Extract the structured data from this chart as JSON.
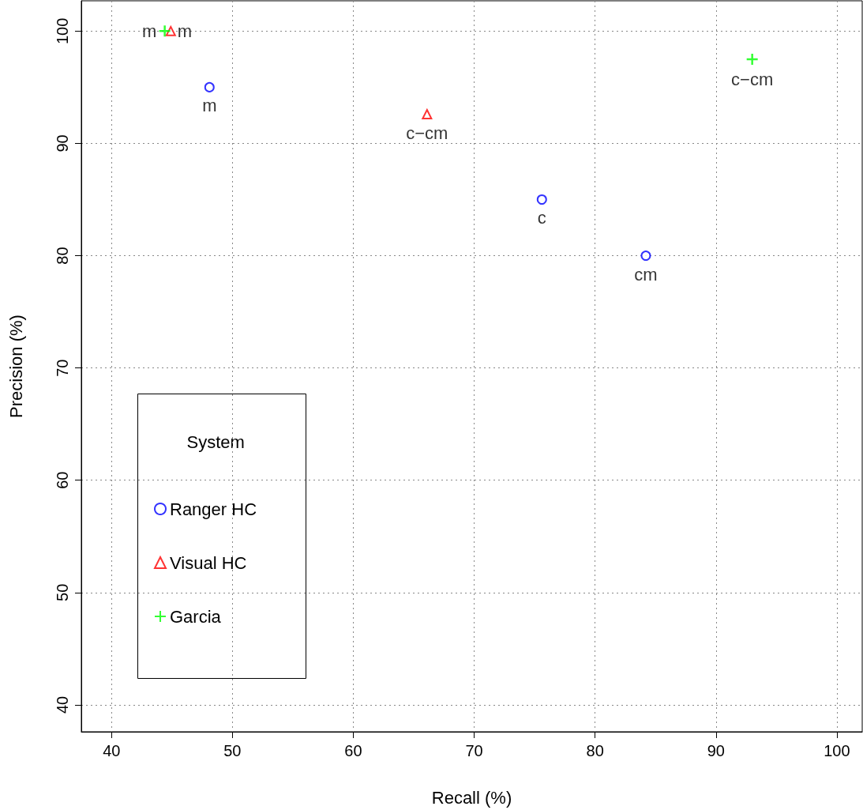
{
  "chart_data": {
    "type": "scatter",
    "xlabel": "Recall (%)",
    "ylabel": "Precision (%)",
    "legend_title": "System",
    "legend": "bottom left",
    "grid": true,
    "xlim": [
      37.5,
      102.1
    ],
    "xticks": [
      40,
      50,
      60,
      70,
      80,
      90,
      100
    ],
    "ylim": [
      37.6,
      102.7
    ],
    "yticks": [
      40,
      50,
      60,
      70,
      80,
      90,
      100
    ],
    "series": [
      {
        "name": "Ranger HC",
        "color": "#0000ff",
        "marker": "circle",
        "x": [
          48.1,
          75.6,
          84.2
        ],
        "values": [
          95,
          85,
          80
        ],
        "value_labels": [
          "m",
          "c",
          "cm"
        ]
      },
      {
        "name": "Visual HC",
        "color": "#ff0000",
        "marker": "triangle",
        "x": [
          44.9,
          66.1
        ],
        "values": [
          100,
          92.6
        ],
        "value_labels": [
          "m",
          "c−cm"
        ]
      },
      {
        "name": "Garcia",
        "color": "#00ff00",
        "marker": "cross",
        "x": [
          44.4,
          93
        ],
        "values": [
          100,
          97.5
        ],
        "value_labels": [
          "m",
          "c−cm"
        ]
      }
    ]
  }
}
